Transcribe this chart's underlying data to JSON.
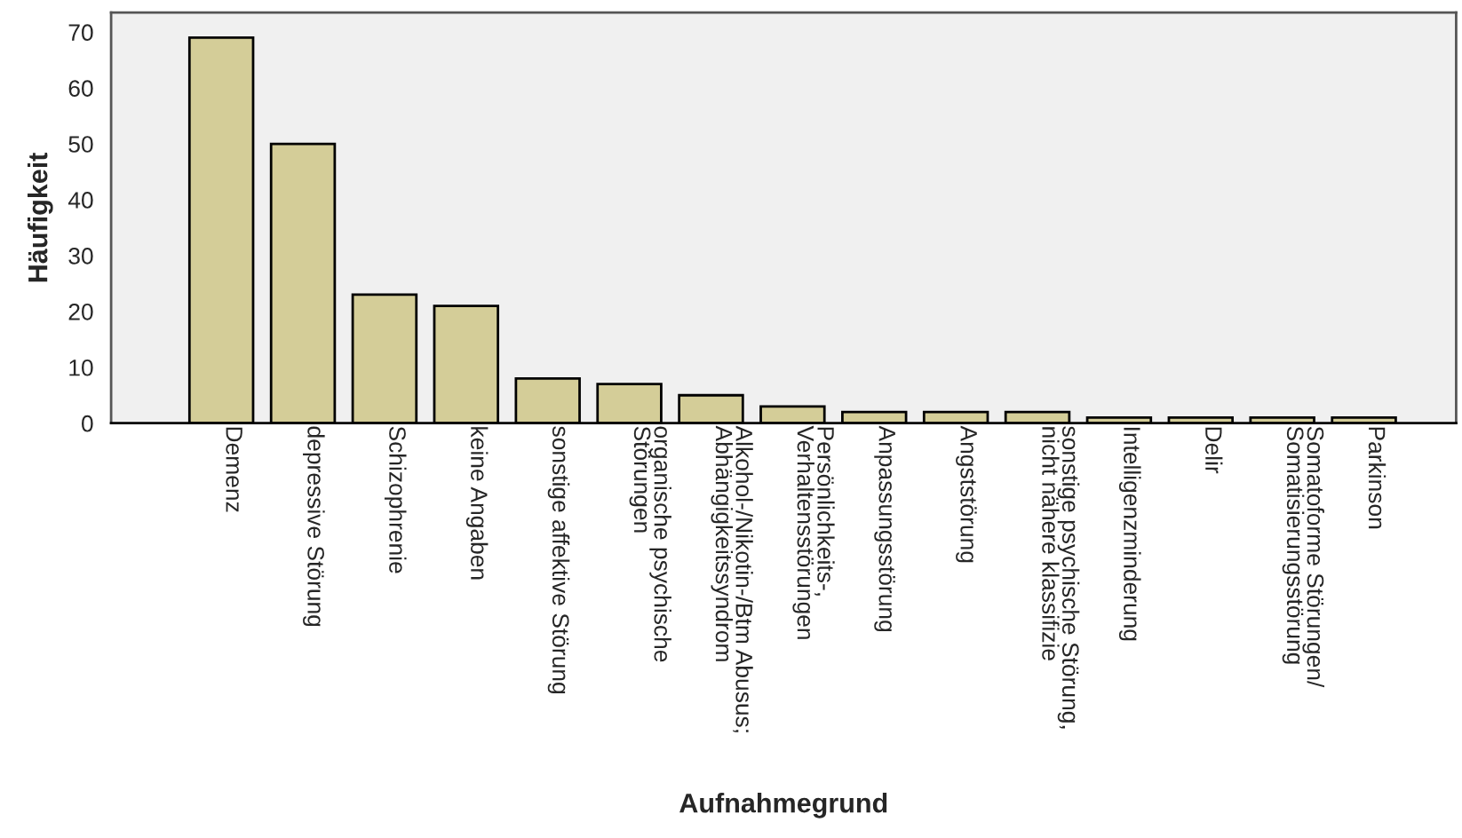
{
  "chart_data": {
    "type": "bar",
    "xlabel": "Aufnahmegrund",
    "ylabel": "Häufigkeit",
    "categories": [
      "Demenz",
      "depressive Störung",
      "Schizophrenie",
      "keine Angaben",
      "sonstige affektive Störung",
      "organische psychische\nStörungen",
      "Alkohol-/Nikotin-/Btm Abusus;\nAbhängigkeitssyndrom",
      "Persönlichkeits-,\nVerhaltensstörungen",
      "Anpassungsstörung",
      "Angststörung",
      "sonstige psychische Störung,\nnicht nähere klassifizie",
      "Intelligenzminderung",
      "Delir",
      "Somatoforme Störungen/\nSomatisierungsstörung",
      "Parkinson"
    ],
    "values": [
      69,
      50,
      23,
      21,
      8,
      7,
      5,
      3,
      2,
      2,
      2,
      1,
      1,
      1,
      1
    ],
    "color": "#d4cd98",
    "ylim": [
      0,
      73.5
    ],
    "yticks": [
      0,
      10,
      20,
      30,
      40,
      50,
      60,
      70
    ],
    "grid": false,
    "legend": false
  }
}
